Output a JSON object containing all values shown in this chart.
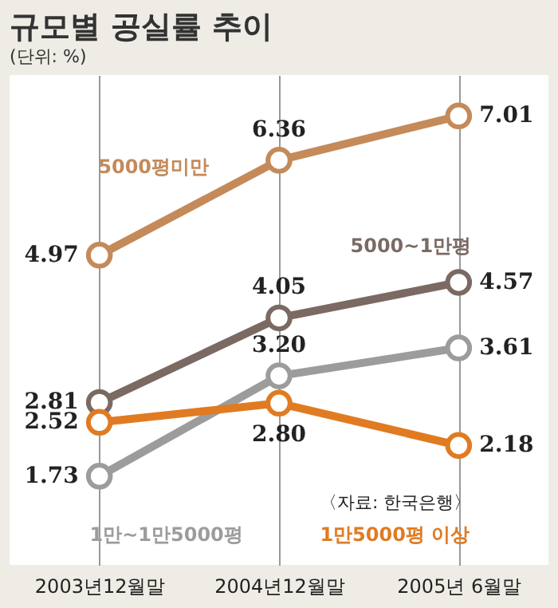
{
  "chart_data": {
    "type": "line",
    "title": "규모별 공실률 추이",
    "subtitle": "(단위: %)",
    "categories": [
      "2003년12월말",
      "2004년12월말",
      "2005년 6월말"
    ],
    "series": [
      {
        "name": "5000평미만",
        "color": "#c48a5a",
        "values": [
          4.97,
          6.36,
          7.01
        ],
        "value_labels": [
          "4.97",
          "6.36",
          "7.01"
        ]
      },
      {
        "name": "5000∼1만평",
        "color": "#7a6a63",
        "values": [
          2.81,
          4.05,
          4.57
        ],
        "value_labels": [
          "2.81",
          "4.05",
          "4.57"
        ]
      },
      {
        "name": "1만∼1만5000평",
        "color": "#9c9c9c",
        "values": [
          1.73,
          3.2,
          3.61
        ],
        "value_labels": [
          "1.73",
          "3.20",
          "3.61"
        ]
      },
      {
        "name": "1만5000평 이상",
        "color": "#e07b22",
        "values": [
          2.52,
          2.8,
          2.18
        ],
        "value_labels": [
          "2.52",
          "2.80",
          "2.18"
        ]
      }
    ],
    "grid": "x",
    "marker": "circle",
    "line_style": "solid",
    "tick_labels": "x",
    "annotations": [
      "〈자료: 한국은행〉"
    ]
  }
}
